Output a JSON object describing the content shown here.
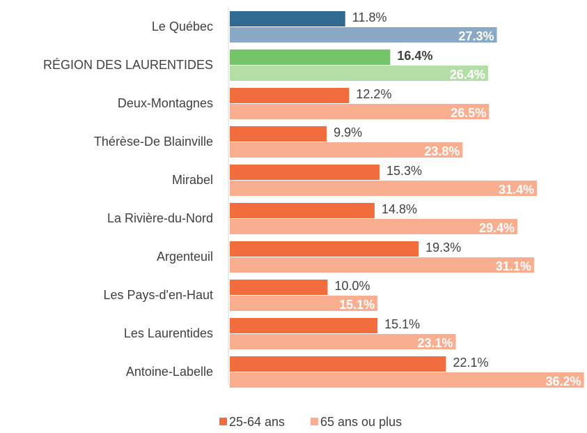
{
  "chart_data": {
    "type": "hbar",
    "categories": [
      "Le Québec",
      "RÉGION DES LAURENTIDES",
      "Deux-Montagnes",
      "Thérèse-De Blainville",
      "Mirabel",
      "La Rivière-du-Nord",
      "Argenteuil",
      "Les Pays-d'en-Haut",
      "Les Laurentides",
      "Antoine-Labelle"
    ],
    "series": [
      {
        "name": "25-64 ans",
        "color": "#f26d3d",
        "colors": [
          "#336a94",
          "#76c46a",
          "#f26d3d",
          "#f26d3d",
          "#f26d3d",
          "#f26d3d",
          "#f26d3d",
          "#f26d3d",
          "#f26d3d",
          "#f26d3d"
        ],
        "values": [
          11.8,
          16.4,
          12.2,
          9.9,
          15.3,
          14.8,
          19.3,
          10.0,
          15.1,
          22.1
        ],
        "value_labels": [
          "11.8%",
          "16.4%",
          "12.2%",
          "9.9%",
          "15.3%",
          "14.8%",
          "19.3%",
          "10.0%",
          "15.1%",
          "22.1%"
        ]
      },
      {
        "name": "65 ans ou plus",
        "color": "#f9ae90",
        "colors": [
          "#8aa9c6",
          "#b3dea8",
          "#f9ae90",
          "#f9ae90",
          "#f9ae90",
          "#f9ae90",
          "#f9ae90",
          "#f9ae90",
          "#f9ae90",
          "#f9ae90"
        ],
        "values": [
          27.3,
          26.4,
          26.5,
          23.8,
          31.4,
          29.4,
          31.1,
          15.1,
          23.1,
          36.2
        ],
        "value_labels": [
          "27.3%",
          "26.4%",
          "26.5%",
          "23.8%",
          "31.4%",
          "29.4%",
          "31.1%",
          "15.1%",
          "23.1%",
          "36.2%"
        ]
      }
    ]
  }
}
